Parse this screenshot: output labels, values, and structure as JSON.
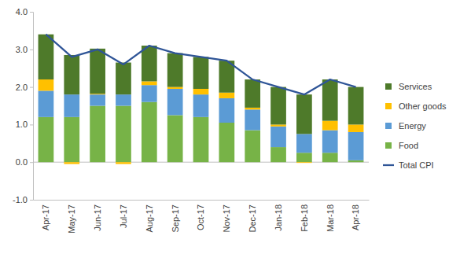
{
  "chart_data": {
    "type": "bar",
    "stacked": true,
    "grid": false,
    "legend": "right",
    "categories": [
      "Apr-17",
      "May-17",
      "Jun-17",
      "Jul-17",
      "Aug-17",
      "Sep-17",
      "Oct-17",
      "Nov-17",
      "Dec-17",
      "Jan-18",
      "Feb-18",
      "Mar-18",
      "Apr-18"
    ],
    "ylim": [
      -1.0,
      4.0
    ],
    "yticks": [
      {
        "value": -1.0,
        "label": "-1.0"
      },
      {
        "value": 0.0,
        "label": "0.0"
      },
      {
        "value": 1.0,
        "label": "1.0"
      },
      {
        "value": 2.0,
        "label": "2.0"
      },
      {
        "value": 3.0,
        "label": "3.0"
      },
      {
        "value": 4.0,
        "label": "4.0"
      }
    ],
    "series": [
      {
        "name": "Food",
        "color": "#77b347",
        "type": "bar",
        "values": [
          1.2,
          1.2,
          1.5,
          1.5,
          1.6,
          1.25,
          1.2,
          1.05,
          0.85,
          0.4,
          0.25,
          0.25,
          0.05
        ]
      },
      {
        "name": "Energy",
        "color": "#5b9bd5",
        "type": "bar",
        "values": [
          0.7,
          0.6,
          0.3,
          0.3,
          0.45,
          0.7,
          0.6,
          0.65,
          0.55,
          0.55,
          0.5,
          0.6,
          0.75
        ]
      },
      {
        "name": "Other goods",
        "color": "#ffc000",
        "type": "bar",
        "values": [
          0.3,
          -0.05,
          0.02,
          -0.05,
          0.1,
          0.05,
          0.15,
          0.15,
          0.05,
          0.05,
          -0.02,
          0.25,
          0.2
        ]
      },
      {
        "name": "Services",
        "color": "#4e7a2a",
        "type": "bar",
        "values": [
          1.2,
          1.05,
          1.2,
          0.85,
          0.95,
          0.9,
          0.85,
          0.85,
          0.75,
          1.0,
          1.05,
          1.1,
          1.0
        ]
      },
      {
        "name": "Total CPI",
        "color": "#2f5597",
        "type": "line",
        "values": [
          3.4,
          2.8,
          3.0,
          2.6,
          3.1,
          2.9,
          2.8,
          2.7,
          2.2,
          2.0,
          1.8,
          2.2,
          2.0
        ]
      }
    ]
  }
}
